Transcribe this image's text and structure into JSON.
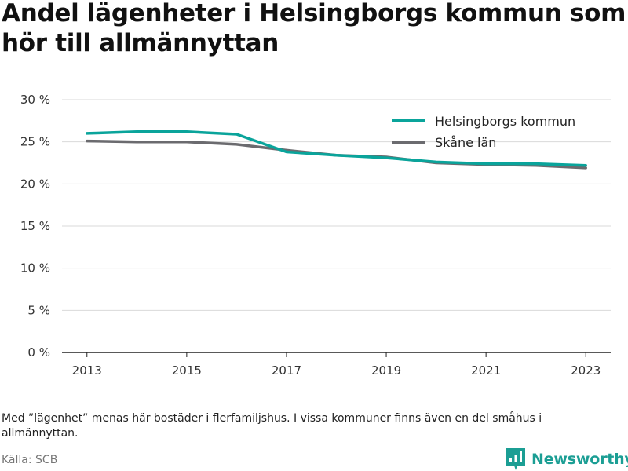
{
  "title": "Andel lägenheter i Helsingborgs kommun som hör till allmännyttan",
  "note": "Med ”lägenhet” menas här bostäder i flerfamiljshus. I vissa kommuner finns även en del småhus i allmännyttan.",
  "source": "Källa: SCB",
  "brand": {
    "name": "Newsworthy",
    "icon": "newsworthy-logo-icon",
    "color": "#1b9e94"
  },
  "chart_data": {
    "type": "line",
    "x": [
      2013,
      2014,
      2015,
      2016,
      2017,
      2018,
      2019,
      2020,
      2021,
      2022,
      2023
    ],
    "x_ticks": [
      "2013",
      "2015",
      "2017",
      "2019",
      "2021",
      "2023"
    ],
    "y_ticks": [
      "0 %",
      "5 %",
      "10 %",
      "15 %",
      "20 %",
      "25 %",
      "30 %"
    ],
    "ylim": [
      0,
      30
    ],
    "grid": true,
    "legend_position": "top-right",
    "series": [
      {
        "name": "Helsingborgs kommun",
        "color": "#0aa49b",
        "values": [
          26.0,
          26.2,
          26.2,
          25.9,
          23.8,
          23.4,
          23.1,
          22.6,
          22.4,
          22.4,
          22.2
        ]
      },
      {
        "name": "Skåne län",
        "color": "#6b6b6f",
        "values": [
          25.1,
          25.0,
          25.0,
          24.7,
          24.0,
          23.4,
          23.2,
          22.5,
          22.3,
          22.2,
          21.9
        ]
      }
    ]
  }
}
